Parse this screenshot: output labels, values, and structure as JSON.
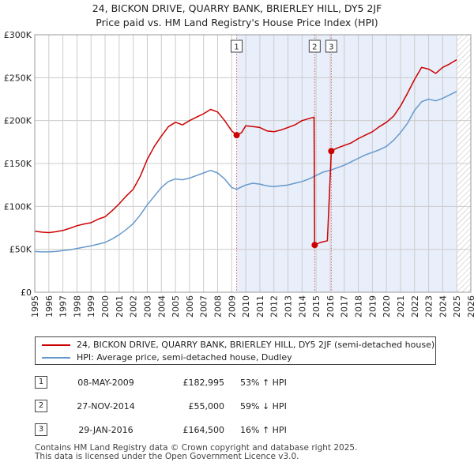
{
  "title": {
    "line1": "24, BICKON DRIVE, QUARRY BANK, BRIERLEY HILL, DY5 2JF",
    "line2": "Price paid vs. HM Land Registry's House Price Index (HPI)"
  },
  "legend": {
    "property": "24, BICKON DRIVE, QUARRY BANK, BRIERLEY HILL, DY5 2JF (semi-detached house)",
    "hpi": "HPI: Average price, semi-detached house, Dudley"
  },
  "transactions": [
    {
      "num": "1",
      "date": "08-MAY-2009",
      "price": "£182,995",
      "hpi": "53% ↑ HPI"
    },
    {
      "num": "2",
      "date": "27-NOV-2014",
      "price": "£55,000",
      "hpi": "59% ↓ HPI"
    },
    {
      "num": "3",
      "date": "29-JAN-2016",
      "price": "£164,500",
      "hpi": "16% ↑ HPI"
    }
  ],
  "footer": {
    "line1": "Contains HM Land Registry data © Crown copyright and database right 2025.",
    "line2": "This data is licensed under the Open Government Licence v3.0."
  },
  "colors": {
    "property": "#cc0000",
    "hpi": "#6699cc",
    "shade": "#e8eefa",
    "grid": "#cccccc",
    "marker_line": "#dd6666"
  },
  "chart_data": {
    "type": "line",
    "xlim": [
      1995,
      2026
    ],
    "ylim": [
      0,
      300000
    ],
    "y_ticks": [
      0,
      50000,
      100000,
      150000,
      200000,
      250000,
      300000
    ],
    "y_tick_labels": [
      "£0",
      "£50K",
      "£100K",
      "£150K",
      "£200K",
      "£250K",
      "£300K"
    ],
    "x_ticks": [
      1995,
      1996,
      1997,
      1998,
      1999,
      2000,
      2001,
      2002,
      2003,
      2004,
      2005,
      2006,
      2007,
      2008,
      2009,
      2010,
      2011,
      2012,
      2013,
      2014,
      2015,
      2016,
      2017,
      2018,
      2019,
      2020,
      2021,
      2022,
      2023,
      2024,
      2025,
      2026
    ],
    "shaded_range": [
      2009.35,
      2025.0
    ],
    "future_hatch_from": 2025.0,
    "markers": [
      {
        "label": "1",
        "x": 2009.35,
        "y": 182995
      },
      {
        "label": "2",
        "x": 2014.9,
        "y": 55000
      },
      {
        "label": "3",
        "x": 2016.08,
        "y": 164500
      }
    ],
    "series": [
      {
        "name": "24, BICKON DRIVE, QUARRY BANK, BRIERLEY HILL, DY5 2JF (semi-detached house)",
        "color": "#cc0000",
        "points": [
          [
            1995,
            71000
          ],
          [
            1995.5,
            70000
          ],
          [
            1996,
            69500
          ],
          [
            1996.5,
            70500
          ],
          [
            1997,
            72000
          ],
          [
            1997.5,
            74500
          ],
          [
            1998,
            77500
          ],
          [
            1998.5,
            79500
          ],
          [
            1999,
            81000
          ],
          [
            1999.5,
            85000
          ],
          [
            2000,
            88000
          ],
          [
            2000.5,
            95000
          ],
          [
            2001,
            103000
          ],
          [
            2001.5,
            112000
          ],
          [
            2002,
            120000
          ],
          [
            2002.5,
            135000
          ],
          [
            2003,
            155000
          ],
          [
            2003.5,
            170000
          ],
          [
            2004,
            182000
          ],
          [
            2004.5,
            193000
          ],
          [
            2005,
            198000
          ],
          [
            2005.5,
            195000
          ],
          [
            2006,
            200000
          ],
          [
            2006.5,
            204000
          ],
          [
            2007,
            208000
          ],
          [
            2007.5,
            213000
          ],
          [
            2008,
            210000
          ],
          [
            2008.5,
            200000
          ],
          [
            2009,
            188000
          ],
          [
            2009.35,
            182995
          ],
          [
            2009.7,
            186000
          ],
          [
            2010,
            194000
          ],
          [
            2010.5,
            193000
          ],
          [
            2011,
            192000
          ],
          [
            2011.5,
            188000
          ],
          [
            2012,
            187000
          ],
          [
            2012.5,
            189000
          ],
          [
            2013,
            192000
          ],
          [
            2013.5,
            195000
          ],
          [
            2014,
            200000
          ],
          [
            2014.85,
            204000
          ],
          [
            2014.9,
            55000
          ],
          [
            2015.3,
            58000
          ],
          [
            2015.8,
            60000
          ],
          [
            2016.08,
            164500
          ],
          [
            2016.5,
            168000
          ],
          [
            2017,
            171000
          ],
          [
            2017.5,
            174000
          ],
          [
            2018,
            179000
          ],
          [
            2018.5,
            183000
          ],
          [
            2019,
            187000
          ],
          [
            2019.5,
            193000
          ],
          [
            2020,
            198000
          ],
          [
            2020.5,
            205000
          ],
          [
            2021,
            217000
          ],
          [
            2021.5,
            232000
          ],
          [
            2022,
            248000
          ],
          [
            2022.5,
            262000
          ],
          [
            2023,
            260000
          ],
          [
            2023.5,
            255000
          ],
          [
            2024,
            262000
          ],
          [
            2024.5,
            266000
          ],
          [
            2025,
            271000
          ]
        ]
      },
      {
        "name": "HPI: Average price, semi-detached house, Dudley",
        "color": "#6699cc",
        "points": [
          [
            1995,
            47500
          ],
          [
            1995.5,
            47000
          ],
          [
            1996,
            47000
          ],
          [
            1996.5,
            47500
          ],
          [
            1997,
            48500
          ],
          [
            1997.5,
            49500
          ],
          [
            1998,
            51000
          ],
          [
            1998.5,
            52500
          ],
          [
            1999,
            54000
          ],
          [
            1999.5,
            56000
          ],
          [
            2000,
            58000
          ],
          [
            2000.5,
            62000
          ],
          [
            2001,
            67000
          ],
          [
            2001.5,
            73000
          ],
          [
            2002,
            80000
          ],
          [
            2002.5,
            90000
          ],
          [
            2003,
            102000
          ],
          [
            2003.5,
            112000
          ],
          [
            2004,
            122000
          ],
          [
            2004.5,
            129000
          ],
          [
            2005,
            132000
          ],
          [
            2005.5,
            131000
          ],
          [
            2006,
            133000
          ],
          [
            2006.5,
            136000
          ],
          [
            2007,
            139000
          ],
          [
            2007.5,
            142000
          ],
          [
            2008,
            139000
          ],
          [
            2008.5,
            132000
          ],
          [
            2009,
            122000
          ],
          [
            2009.35,
            120000
          ],
          [
            2010,
            125000
          ],
          [
            2010.5,
            127000
          ],
          [
            2011,
            126000
          ],
          [
            2011.5,
            124000
          ],
          [
            2012,
            123000
          ],
          [
            2012.5,
            124000
          ],
          [
            2013,
            125000
          ],
          [
            2013.5,
            127000
          ],
          [
            2014,
            129000
          ],
          [
            2014.5,
            132000
          ],
          [
            2015,
            136000
          ],
          [
            2015.5,
            140000
          ],
          [
            2016,
            142000
          ],
          [
            2016.5,
            145000
          ],
          [
            2017,
            148000
          ],
          [
            2017.5,
            152000
          ],
          [
            2018,
            156000
          ],
          [
            2018.5,
            160000
          ],
          [
            2019,
            163000
          ],
          [
            2019.5,
            166000
          ],
          [
            2020,
            170000
          ],
          [
            2020.5,
            177000
          ],
          [
            2021,
            186000
          ],
          [
            2021.5,
            197000
          ],
          [
            2022,
            212000
          ],
          [
            2022.5,
            222000
          ],
          [
            2023,
            225000
          ],
          [
            2023.5,
            223000
          ],
          [
            2024,
            226000
          ],
          [
            2024.5,
            230000
          ],
          [
            2025,
            234000
          ]
        ]
      }
    ]
  }
}
